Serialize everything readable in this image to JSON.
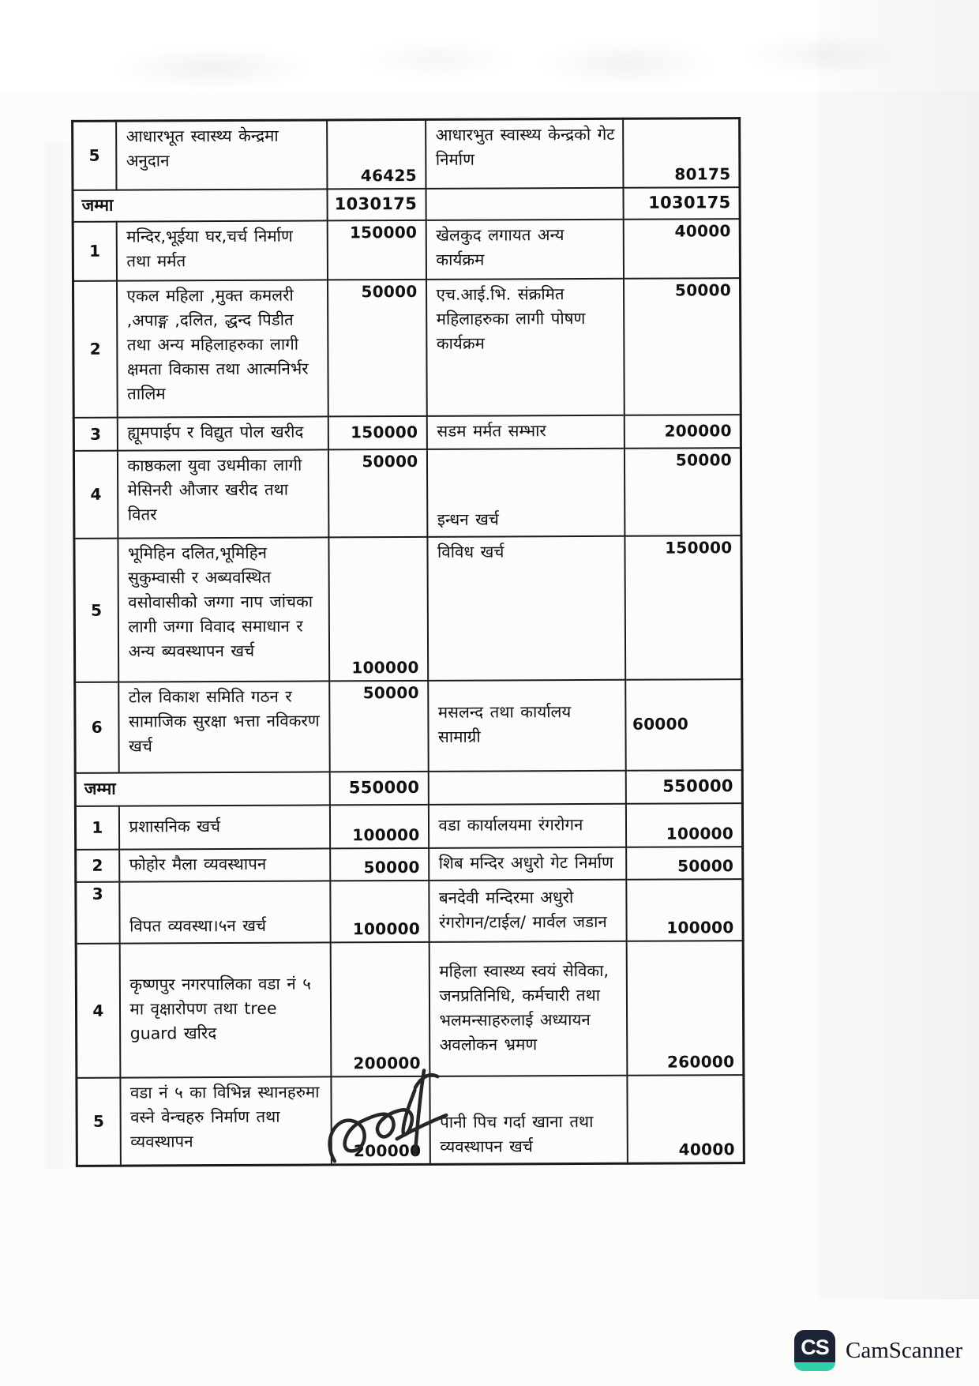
{
  "document": {
    "type": "scanned-budget-table",
    "sections": [
      {
        "rows": [
          {
            "sn": "5",
            "desc1": "आधारभूत स्वास्थ्य केन्द्रमा अनुदान",
            "amount1": "46425",
            "desc2": "आधारभुत स्वास्थ्य केन्द्रको गेट निर्माण",
            "amount2": "80175"
          }
        ],
        "total": {
          "label": "जम्मा",
          "amount1": "1030175",
          "amount2": "1030175"
        }
      },
      {
        "rows": [
          {
            "sn": "1",
            "desc1": "मन्दिर,भूईया घर,चर्च निर्माण तथा मर्मत",
            "amount1": "150000",
            "desc2": "खेलकुद लगायत अन्य कार्यक्रम",
            "amount2": "40000"
          },
          {
            "sn": "2",
            "desc1": "एकल महिला ,मुक्त कमलरी ,अपाङ्ग ,दलित, द्धन्द पिडीत तथा अन्य महिलाहरुका लागी क्षमता विकास तथा आत्मनिर्भर तालिम",
            "amount1": "50000",
            "desc2": "एच.आई.भि. संक्रमित महिलाहरुका लागी पोषण कार्यक्रम",
            "amount2": "50000"
          },
          {
            "sn": "3",
            "desc1": "ह्यूमपाईप र विद्युत पोल खरीद",
            "amount1": "150000",
            "desc2": "सडम मर्मत सम्भार",
            "amount2": "200000"
          },
          {
            "sn": "4",
            "desc1": "काष्ठकला युवा उधमीका लागी मेसिनरी औजार खरीद तथा वितर",
            "amount1": "50000",
            "desc2": "इन्धन खर्च",
            "amount2": "50000"
          },
          {
            "sn": "5",
            "desc1": "भूमिहिन दलित,भूमिहिन सुकुम्वासी र अब्यवस्थित वसोवासीको जग्गा नाप जांचका लागी जग्गा विवाद समाधान र अन्य ब्यवस्थापन खर्च",
            "amount1": "100000",
            "desc2": "विविध खर्च",
            "amount2": "150000"
          },
          {
            "sn": "6",
            "desc1": "टोल विकाश समिति गठन र सामाजिक सुरक्षा भत्ता नविकरण खर्च",
            "amount1": "50000",
            "desc2": "मसलन्द तथा कार्यालय सामाग्री",
            "amount2": "60000"
          }
        ],
        "total": {
          "label": "जम्मा",
          "amount1": "550000",
          "amount2": "550000"
        }
      },
      {
        "rows": [
          {
            "sn": "1",
            "desc1": "प्रशासनिक खर्च",
            "amount1": "100000",
            "desc2": "वडा कार्यालयमा रंगरोगन",
            "amount2": "100000"
          },
          {
            "sn": "2",
            "desc1": "फोहोर मैला व्यवस्थापन",
            "amount1": "50000",
            "desc2": "शिब मन्दिर अधुरो गेट निर्माण",
            "amount2": "50000"
          },
          {
            "sn": "3",
            "desc1": "विपत व्यवस्था।५न खर्च",
            "amount1": "100000",
            "desc2": "बनदेवी मन्दिरमा अधुरो रंगरोगन/टाईल/ मार्वल जडान",
            "amount2": "100000"
          },
          {
            "sn": "4",
            "desc1": "कृष्णपुर नगरपालिका वडा नं ५ मा वृक्षारोपण तथा tree guard खरिद",
            "amount1": "200000",
            "desc2": "महिला स्वास्थ्य स्वयं सेविका, जनप्रतिनिधि, कर्मचारी तथा भलमन्साहरुलाई अध्यायन अवलोकन भ्रमण",
            "amount2": "260000"
          },
          {
            "sn": "5",
            "desc1": "वडा नं ५ का विभिन्न स्थानहरुमा वस्ने वेन्चहरु निर्माण तथा व्यवस्थापन",
            "amount1": "200000",
            "desc2": "पानी पिच गर्दा खाना तथा व्यवस्थापन खर्च",
            "amount2": "40000"
          }
        ]
      }
    ]
  },
  "footer": {
    "icon_text": "CS",
    "brand": "CamScanner",
    "icon_bg": "#1b2334",
    "icon_accent": "#2fd0a9"
  }
}
